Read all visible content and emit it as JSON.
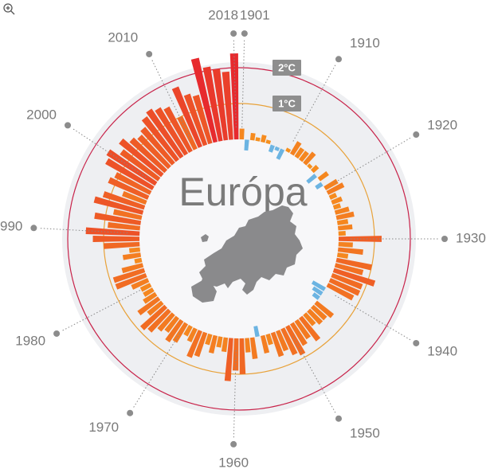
{
  "chart_data": {
    "type": "radial-bar",
    "title": "Európa",
    "x": [
      1901,
      1902,
      1903,
      1904,
      1905,
      1906,
      1907,
      1908,
      1909,
      1910,
      1911,
      1912,
      1913,
      1914,
      1915,
      1916,
      1917,
      1918,
      1919,
      1920,
      1921,
      1922,
      1923,
      1924,
      1925,
      1926,
      1927,
      1928,
      1929,
      1930,
      1931,
      1932,
      1933,
      1934,
      1935,
      1936,
      1937,
      1938,
      1939,
      1940,
      1941,
      1942,
      1943,
      1944,
      1945,
      1946,
      1947,
      1948,
      1949,
      1950,
      1951,
      1952,
      1953,
      1954,
      1955,
      1956,
      1957,
      1958,
      1959,
      1960,
      1961,
      1962,
      1963,
      1964,
      1965,
      1966,
      1967,
      1968,
      1969,
      1970,
      1971,
      1972,
      1973,
      1974,
      1975,
      1976,
      1977,
      1978,
      1979,
      1980,
      1981,
      1982,
      1983,
      1984,
      1985,
      1986,
      1987,
      1988,
      1989,
      1990,
      1991,
      1992,
      1993,
      1994,
      1995,
      1996,
      1997,
      1998,
      1999,
      2000,
      2001,
      2002,
      2003,
      2004,
      2005,
      2006,
      2007,
      2008,
      2009,
      2010,
      2011,
      2012,
      2013,
      2014,
      2015,
      2016,
      2017,
      2018
    ],
    "values": [
      0.3,
      -0.3,
      0.2,
      0.1,
      0.2,
      0.1,
      -0.2,
      -0.1,
      -0.3,
      0.1,
      0.4,
      0.3,
      0.3,
      0.4,
      0.1,
      0.2,
      -0.3,
      0.3,
      -0.2,
      0.4,
      0.5,
      0.2,
      0.3,
      0.2,
      0.4,
      0.5,
      0.3,
      0.4,
      0.2,
      1.2,
      0.4,
      0.7,
      0.3,
      1.0,
      0.8,
      1.2,
      0.9,
      0.9,
      0.8,
      -0.4,
      -0.3,
      -0.2,
      0.6,
      0.5,
      0.5,
      0.4,
      0.8,
      0.6,
      0.7,
      0.9,
      0.8,
      0.6,
      0.7,
      0.3,
      0.5,
      -0.3,
      0.6,
      0.4,
      1.0,
      0.9,
      1.2,
      0.4,
      0.3,
      0.5,
      0.3,
      0.7,
      0.8,
      0.4,
      0.3,
      0.6,
      0.7,
      0.5,
      0.6,
      0.8,
      0.9,
      0.5,
      0.7,
      0.4,
      0.3,
      0.3,
      0.5,
      0.9,
      0.9,
      0.6,
      0.2,
      0.5,
      0.3,
      1.0,
      1.3,
      1.5,
      0.9,
      1.3,
      0.8,
      1.4,
      1.2,
      0.7,
      1.2,
      1.1,
      1.5,
      1.6,
      1.3,
      1.5,
      1.3,
      1.2,
      1.3,
      1.5,
      1.6,
      1.5,
      1.4,
      1.0,
      1.8,
      1.5,
      1.4,
      2.4,
      2.1,
      2.0,
      1.9,
      2.4
    ],
    "xticks": [
      1901,
      1910,
      1920,
      1930,
      1940,
      1950,
      1960,
      1970,
      1980,
      1990,
      2000,
      2010,
      2018
    ],
    "ylim": [
      -1,
      2.5
    ],
    "yticks": [
      {
        "value": 1,
        "label": "1°C"
      },
      {
        "value": 2,
        "label": "2°C"
      }
    ],
    "colors": {
      "negative": "#6cb4e2",
      "low": "#f7941d",
      "high": "#e6262f",
      "ring1": "#e8a23a",
      "ring2": "#c8234a"
    }
  }
}
